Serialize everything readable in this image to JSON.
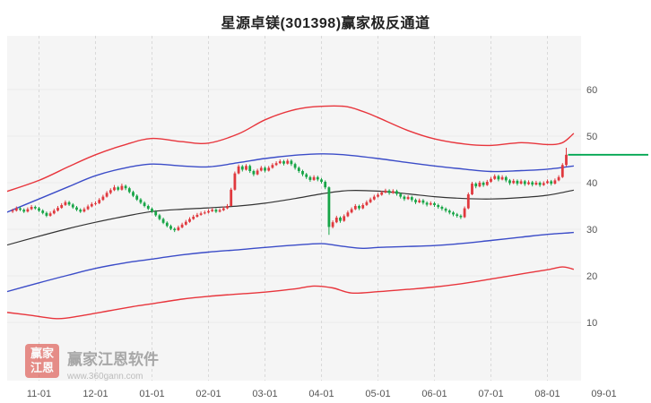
{
  "title": "星源卓镁(301398)赢家极反通道",
  "watermark": {
    "logo_line1": "赢家",
    "logo_line2": "江恩",
    "brand": "赢家江恩软件",
    "url": "www.360gann.com"
  },
  "chart_data": {
    "type": "candlestick",
    "title": "星源卓镁(301398)赢家极反通道",
    "xlabel": "",
    "ylabel": "",
    "ylim": [
      5,
      62
    ],
    "grid": true,
    "x_ticks": [
      "11-01",
      "12-01",
      "01-01",
      "02-01",
      "03-01",
      "04-01",
      "05-01",
      "06-01",
      "07-01",
      "08-01",
      "09-01"
    ],
    "x_tick_indices": [
      7,
      22,
      37,
      52,
      67,
      82,
      97,
      112,
      127,
      142,
      157
    ],
    "y_ticks": [
      60,
      50,
      40,
      30,
      20,
      10
    ],
    "colors": {
      "up": "#e0393e",
      "down": "#17a546",
      "grid_h": "#eaeaea",
      "grid_v": "#d9d9d9",
      "plot_bg": "#f5f5f5",
      "axis_text": "#555555"
    },
    "last_price_line": {
      "value": 46.0,
      "color": "#00a651"
    },
    "candles": [
      [
        33.8,
        34.4,
        33.5,
        34.0
      ],
      [
        34.0,
        34.9,
        33.8,
        34.5
      ],
      [
        34.5,
        34.8,
        33.9,
        34.2
      ],
      [
        34.2,
        34.5,
        33.5,
        33.8
      ],
      [
        33.8,
        34.7,
        33.6,
        34.3
      ],
      [
        34.3,
        35.2,
        34.1,
        34.8
      ],
      [
        34.8,
        35.1,
        34.2,
        34.5
      ],
      [
        34.5,
        34.8,
        33.7,
        34.0
      ],
      [
        34.0,
        34.3,
        33.2,
        33.5
      ],
      [
        33.5,
        33.8,
        32.6,
        32.9
      ],
      [
        32.9,
        33.8,
        32.7,
        33.4
      ],
      [
        33.4,
        34.4,
        33.2,
        34.0
      ],
      [
        34.0,
        35.0,
        33.8,
        34.6
      ],
      [
        34.6,
        35.6,
        34.4,
        35.2
      ],
      [
        35.2,
        36.2,
        35.0,
        35.8
      ],
      [
        35.8,
        36.1,
        35.0,
        35.3
      ],
      [
        35.3,
        35.6,
        34.4,
        34.7
      ],
      [
        34.7,
        35.0,
        33.9,
        34.2
      ],
      [
        34.2,
        34.5,
        33.5,
        33.8
      ],
      [
        33.8,
        34.7,
        33.6,
        34.3
      ],
      [
        34.3,
        35.3,
        34.1,
        34.9
      ],
      [
        34.9,
        35.8,
        34.7,
        35.4
      ],
      [
        35.4,
        36.0,
        35.1,
        35.6
      ],
      [
        35.6,
        36.7,
        35.4,
        36.3
      ],
      [
        36.3,
        37.4,
        36.1,
        37.0
      ],
      [
        37.0,
        38.2,
        36.8,
        37.8
      ],
      [
        37.8,
        38.8,
        37.5,
        38.4
      ],
      [
        38.4,
        39.5,
        38.2,
        39.0
      ],
      [
        39.0,
        39.3,
        38.2,
        38.5
      ],
      [
        38.5,
        39.8,
        38.3,
        39.3
      ],
      [
        39.3,
        39.6,
        38.4,
        38.8
      ],
      [
        38.8,
        39.1,
        37.7,
        38.0
      ],
      [
        38.0,
        38.3,
        36.9,
        37.2
      ],
      [
        37.2,
        37.5,
        36.1,
        36.4
      ],
      [
        36.4,
        36.7,
        35.4,
        35.7
      ],
      [
        35.7,
        36.0,
        34.7,
        35.0
      ],
      [
        35.0,
        35.3,
        34.1,
        34.4
      ],
      [
        34.4,
        34.7,
        33.5,
        33.8
      ],
      [
        33.8,
        34.1,
        32.7,
        33.0
      ],
      [
        33.0,
        33.3,
        31.9,
        32.2
      ],
      [
        32.2,
        32.5,
        31.1,
        31.4
      ],
      [
        31.4,
        31.7,
        30.4,
        30.7
      ],
      [
        30.7,
        31.0,
        29.8,
        30.1
      ],
      [
        30.1,
        30.4,
        29.4,
        29.8
      ],
      [
        29.8,
        30.8,
        29.6,
        30.4
      ],
      [
        30.4,
        31.4,
        30.2,
        31.0
      ],
      [
        31.0,
        32.0,
        30.8,
        31.6
      ],
      [
        31.6,
        32.6,
        31.4,
        32.2
      ],
      [
        32.2,
        33.1,
        32.0,
        32.7
      ],
      [
        32.7,
        33.5,
        32.5,
        33.1
      ],
      [
        33.1,
        33.8,
        32.9,
        33.4
      ],
      [
        33.4,
        34.0,
        33.2,
        33.6
      ],
      [
        33.6,
        34.3,
        33.4,
        33.9
      ],
      [
        33.9,
        34.6,
        33.7,
        34.2
      ],
      [
        34.2,
        34.5,
        33.5,
        33.8
      ],
      [
        33.8,
        34.5,
        33.6,
        34.1
      ],
      [
        34.1,
        34.9,
        33.9,
        34.5
      ],
      [
        34.5,
        35.4,
        34.3,
        35.0
      ],
      [
        35.0,
        38.9,
        34.9,
        38.5
      ],
      [
        38.5,
        42.4,
        38.3,
        42.0
      ],
      [
        42.0,
        43.9,
        41.8,
        43.5
      ],
      [
        43.5,
        43.8,
        42.4,
        42.8
      ],
      [
        42.8,
        44.0,
        42.6,
        43.6
      ],
      [
        43.6,
        43.9,
        42.1,
        42.5
      ],
      [
        42.5,
        42.8,
        41.4,
        41.8
      ],
      [
        41.8,
        43.0,
        41.6,
        42.6
      ],
      [
        42.6,
        43.6,
        42.4,
        43.2
      ],
      [
        43.2,
        43.5,
        42.2,
        42.6
      ],
      [
        42.6,
        43.6,
        42.4,
        43.2
      ],
      [
        43.2,
        44.2,
        43.0,
        43.8
      ],
      [
        43.8,
        44.6,
        43.6,
        44.2
      ],
      [
        44.2,
        45.0,
        44.0,
        44.6
      ],
      [
        44.6,
        44.9,
        43.7,
        44.1
      ],
      [
        44.1,
        45.1,
        43.9,
        44.7
      ],
      [
        44.7,
        45.0,
        43.6,
        44.0
      ],
      [
        44.0,
        44.3,
        42.8,
        43.2
      ],
      [
        43.2,
        43.5,
        42.1,
        42.5
      ],
      [
        42.5,
        42.8,
        41.4,
        41.8
      ],
      [
        41.8,
        42.1,
        40.8,
        41.2
      ],
      [
        41.2,
        41.5,
        40.2,
        40.6
      ],
      [
        40.6,
        41.6,
        40.4,
        41.2
      ],
      [
        41.2,
        41.5,
        40.3,
        40.7
      ],
      [
        40.7,
        41.0,
        39.8,
        40.2
      ],
      [
        40.2,
        40.5,
        38.6,
        39.0
      ],
      [
        39.0,
        39.2,
        28.8,
        30.5
      ],
      [
        30.5,
        31.9,
        30.2,
        31.5
      ],
      [
        31.5,
        32.9,
        31.3,
        32.5
      ],
      [
        32.5,
        32.8,
        31.4,
        31.8
      ],
      [
        31.8,
        33.2,
        31.6,
        32.8
      ],
      [
        32.8,
        34.0,
        32.6,
        33.6
      ],
      [
        33.6,
        34.7,
        33.4,
        34.3
      ],
      [
        34.3,
        35.4,
        34.1,
        35.0
      ],
      [
        35.0,
        35.3,
        34.1,
        34.5
      ],
      [
        34.5,
        35.6,
        34.3,
        35.2
      ],
      [
        35.2,
        36.2,
        35.0,
        35.8
      ],
      [
        35.8,
        36.8,
        35.6,
        36.4
      ],
      [
        36.4,
        37.4,
        36.2,
        37.0
      ],
      [
        37.0,
        37.8,
        36.8,
        37.4
      ],
      [
        37.4,
        38.3,
        37.2,
        37.9
      ],
      [
        37.9,
        38.7,
        37.7,
        38.3
      ],
      [
        38.3,
        38.6,
        37.4,
        37.8
      ],
      [
        37.8,
        38.6,
        37.6,
        38.2
      ],
      [
        38.2,
        38.5,
        37.2,
        37.6
      ],
      [
        37.6,
        37.9,
        36.6,
        37.0
      ],
      [
        37.0,
        37.3,
        36.1,
        36.5
      ],
      [
        36.5,
        37.3,
        36.3,
        36.9
      ],
      [
        36.9,
        37.2,
        35.9,
        36.3
      ],
      [
        36.3,
        36.6,
        35.4,
        35.8
      ],
      [
        35.8,
        36.6,
        35.6,
        36.2
      ],
      [
        36.2,
        36.5,
        35.3,
        35.7
      ],
      [
        35.7,
        36.0,
        34.9,
        35.3
      ],
      [
        35.3,
        36.0,
        35.1,
        35.6
      ],
      [
        35.6,
        35.9,
        34.8,
        35.2
      ],
      [
        35.2,
        35.5,
        34.4,
        34.8
      ],
      [
        34.8,
        35.1,
        34.0,
        34.4
      ],
      [
        34.4,
        34.7,
        33.6,
        34.0
      ],
      [
        34.0,
        34.3,
        33.2,
        33.6
      ],
      [
        33.6,
        33.9,
        32.8,
        33.2
      ],
      [
        33.2,
        33.5,
        32.5,
        32.9
      ],
      [
        32.9,
        33.2,
        32.2,
        32.6
      ],
      [
        32.6,
        34.9,
        32.4,
        34.5
      ],
      [
        34.5,
        37.9,
        34.3,
        37.5
      ],
      [
        37.5,
        40.2,
        37.3,
        39.8
      ],
      [
        39.8,
        40.1,
        38.8,
        39.2
      ],
      [
        39.2,
        40.4,
        39.0,
        40.0
      ],
      [
        40.0,
        40.3,
        39.1,
        39.5
      ],
      [
        39.5,
        40.6,
        39.3,
        40.2
      ],
      [
        40.2,
        41.2,
        40.0,
        40.8
      ],
      [
        40.8,
        41.8,
        40.6,
        41.4
      ],
      [
        41.4,
        41.7,
        40.3,
        40.7
      ],
      [
        40.7,
        41.6,
        40.5,
        41.2
      ],
      [
        41.2,
        41.5,
        40.1,
        40.5
      ],
      [
        40.5,
        40.8,
        39.5,
        39.9
      ],
      [
        39.9,
        40.8,
        39.7,
        40.4
      ],
      [
        40.4,
        40.7,
        39.4,
        39.8
      ],
      [
        39.8,
        40.7,
        39.6,
        40.3
      ],
      [
        40.3,
        40.6,
        39.3,
        39.7
      ],
      [
        39.7,
        40.5,
        39.5,
        40.1
      ],
      [
        40.1,
        40.4,
        39.2,
        39.6
      ],
      [
        39.6,
        40.4,
        39.4,
        40.0
      ],
      [
        40.0,
        40.3,
        39.1,
        39.5
      ],
      [
        39.5,
        40.3,
        39.3,
        39.9
      ],
      [
        39.9,
        40.7,
        39.7,
        40.3
      ],
      [
        40.3,
        40.6,
        39.4,
        39.8
      ],
      [
        39.8,
        40.9,
        39.6,
        40.5
      ],
      [
        40.5,
        41.6,
        40.3,
        41.2
      ],
      [
        41.2,
        44.2,
        41.0,
        43.8
      ],
      [
        43.8,
        47.5,
        43.5,
        46.0
      ]
    ],
    "channel_lines": [
      {
        "name": "upper-rail-red",
        "color": "#e8353c",
        "width": 1.4,
        "points": [
          [
            -2,
            38.0
          ],
          [
            7,
            40.5
          ],
          [
            15,
            43.5
          ],
          [
            22,
            46.0
          ],
          [
            30,
            48.2
          ],
          [
            37,
            49.5
          ],
          [
            45,
            48.8
          ],
          [
            52,
            48.5
          ],
          [
            60,
            50.5
          ],
          [
            67,
            53.5
          ],
          [
            74,
            55.5
          ],
          [
            80,
            56.3
          ],
          [
            88,
            56.4
          ],
          [
            93,
            55.3
          ],
          [
            97,
            54.0
          ],
          [
            105,
            51.2
          ],
          [
            112,
            49.4
          ],
          [
            120,
            48.3
          ],
          [
            127,
            48.0
          ],
          [
            135,
            48.6
          ],
          [
            142,
            48.2
          ],
          [
            146,
            48.6
          ],
          [
            149,
            50.6
          ]
        ]
      },
      {
        "name": "upper-mid-blue",
        "color": "#3b4cc8",
        "width": 1.4,
        "points": [
          [
            -2,
            33.5
          ],
          [
            7,
            36.5
          ],
          [
            15,
            39.2
          ],
          [
            22,
            41.5
          ],
          [
            30,
            43.2
          ],
          [
            37,
            44.0
          ],
          [
            45,
            43.6
          ],
          [
            52,
            43.4
          ],
          [
            60,
            44.3
          ],
          [
            67,
            45.2
          ],
          [
            75,
            45.9
          ],
          [
            82,
            46.2
          ],
          [
            88,
            46.0
          ],
          [
            97,
            45.2
          ],
          [
            105,
            44.3
          ],
          [
            112,
            43.6
          ],
          [
            120,
            42.9
          ],
          [
            127,
            42.4
          ],
          [
            135,
            42.6
          ],
          [
            142,
            42.9
          ],
          [
            149,
            43.6
          ]
        ]
      },
      {
        "name": "center-black",
        "color": "#333333",
        "width": 1.2,
        "points": [
          [
            -2,
            26.5
          ],
          [
            7,
            28.5
          ],
          [
            15,
            30.2
          ],
          [
            22,
            31.5
          ],
          [
            30,
            32.8
          ],
          [
            37,
            33.8
          ],
          [
            45,
            34.3
          ],
          [
            52,
            34.6
          ],
          [
            60,
            35.0
          ],
          [
            67,
            35.6
          ],
          [
            75,
            36.6
          ],
          [
            82,
            37.6
          ],
          [
            89,
            38.3
          ],
          [
            97,
            38.2
          ],
          [
            105,
            37.6
          ],
          [
            112,
            37.0
          ],
          [
            120,
            36.6
          ],
          [
            127,
            36.5
          ],
          [
            135,
            36.8
          ],
          [
            142,
            37.3
          ],
          [
            149,
            38.4
          ]
        ]
      },
      {
        "name": "lower-mid-blue",
        "color": "#3b4cc8",
        "width": 1.4,
        "points": [
          [
            -2,
            16.5
          ],
          [
            7,
            18.5
          ],
          [
            15,
            20.2
          ],
          [
            22,
            21.6
          ],
          [
            30,
            22.8
          ],
          [
            37,
            23.6
          ],
          [
            45,
            24.5
          ],
          [
            52,
            25.1
          ],
          [
            60,
            25.6
          ],
          [
            67,
            26.1
          ],
          [
            75,
            26.6
          ],
          [
            82,
            26.9
          ],
          [
            88,
            26.3
          ],
          [
            93,
            25.9
          ],
          [
            97,
            26.1
          ],
          [
            105,
            26.3
          ],
          [
            112,
            26.5
          ],
          [
            120,
            27.0
          ],
          [
            127,
            27.6
          ],
          [
            135,
            28.3
          ],
          [
            142,
            28.9
          ],
          [
            149,
            29.3
          ]
        ]
      },
      {
        "name": "lower-rail-red",
        "color": "#e8353c",
        "width": 1.4,
        "points": [
          [
            -2,
            12.2
          ],
          [
            5,
            11.5
          ],
          [
            12,
            10.8
          ],
          [
            18,
            11.4
          ],
          [
            25,
            12.4
          ],
          [
            32,
            13.4
          ],
          [
            37,
            14.0
          ],
          [
            45,
            15.0
          ],
          [
            52,
            15.6
          ],
          [
            60,
            16.1
          ],
          [
            67,
            16.5
          ],
          [
            75,
            17.2
          ],
          [
            80,
            17.8
          ],
          [
            85,
            17.4
          ],
          [
            90,
            16.3
          ],
          [
            97,
            16.6
          ],
          [
            105,
            17.1
          ],
          [
            112,
            17.6
          ],
          [
            120,
            18.4
          ],
          [
            127,
            19.3
          ],
          [
            135,
            20.4
          ],
          [
            142,
            21.3
          ],
          [
            146,
            21.9
          ],
          [
            149,
            21.4
          ]
        ]
      }
    ]
  }
}
